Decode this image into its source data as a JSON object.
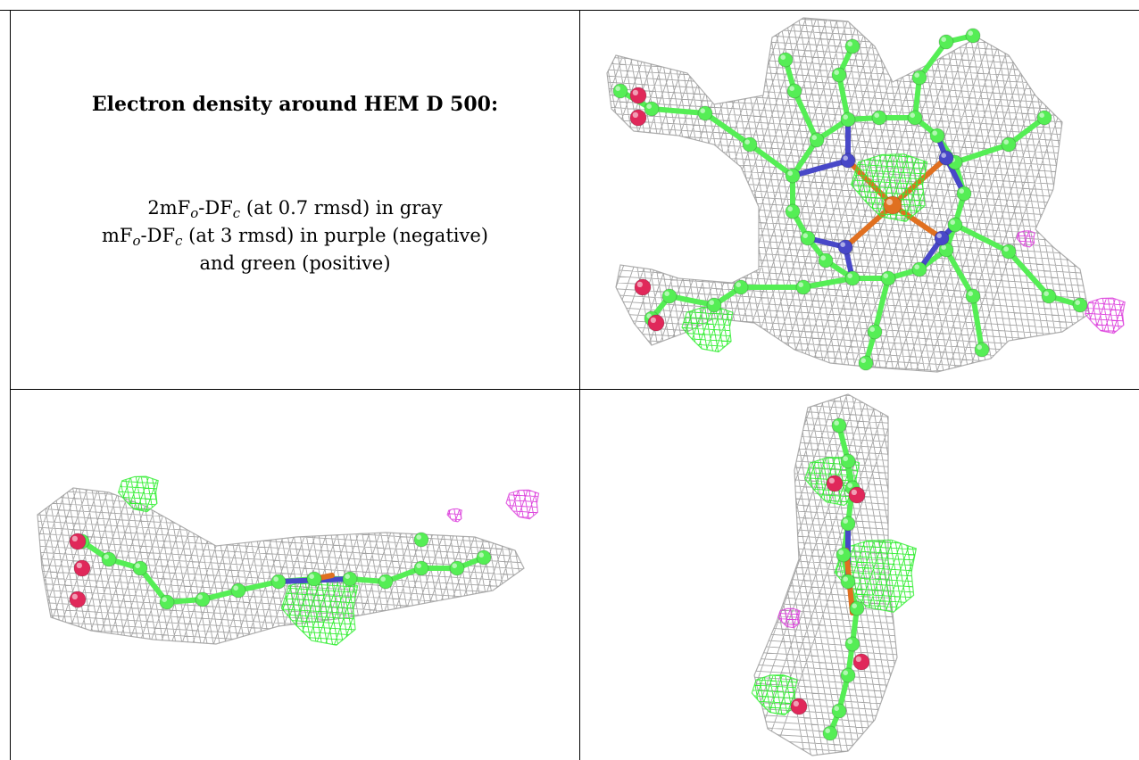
{
  "figure": {
    "title": "Electron density around HEM D 500:",
    "caption": {
      "line1": {
        "a": "2mF",
        "sub1": "o",
        "b": "-DF",
        "sub2": "c",
        "c": " (at 0.7 rmsd) in gray"
      },
      "line2": {
        "a": "mF",
        "sub1": "o",
        "b": "-DF",
        "sub2": "c",
        "c": " (at 3 rmsd) in purple (negative)"
      },
      "line3": "and green (positive)"
    }
  },
  "colors": {
    "mesh_gray": "#9a9a9a",
    "mesh_green": "#33ee33",
    "mesh_purple": "#dd44dd",
    "carbon": "#55ee55",
    "nitrogen": "#4848c8",
    "oxygen": "#e0285a",
    "iron": "#e07020",
    "border": "#000000"
  },
  "panels": [
    {
      "view": "top-right",
      "molecule": "heme-face-on"
    },
    {
      "view": "bottom-left",
      "molecule": "heme-side-on"
    },
    {
      "view": "bottom-right",
      "molecule": "heme-edge-on"
    }
  ]
}
